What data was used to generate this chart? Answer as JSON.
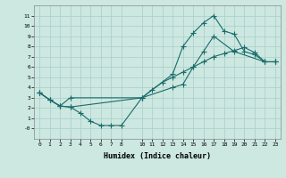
{
  "xlabel": "Humidex (Indice chaleur)",
  "bg_color": "#cce8e0",
  "grid_color": "#a8cec8",
  "line_color": "#1a6b6b",
  "xlim": [
    -0.5,
    23.5
  ],
  "ylim": [
    -1.0,
    12.0
  ],
  "xtick_positions": [
    0,
    1,
    2,
    3,
    4,
    5,
    6,
    7,
    8,
    10,
    11,
    12,
    13,
    14,
    15,
    16,
    17,
    18,
    19,
    20,
    21,
    22,
    23
  ],
  "xtick_labels": [
    "0",
    "1",
    "2",
    "3",
    "4",
    "5",
    "6",
    "7",
    "8",
    "10",
    "11",
    "12",
    "13",
    "14",
    "15",
    "16",
    "17",
    "18",
    "19",
    "20",
    "21",
    "22",
    "23"
  ],
  "ytick_positions": [
    0,
    1,
    2,
    3,
    4,
    5,
    6,
    7,
    8,
    9,
    10,
    11
  ],
  "ytick_labels": [
    "-0",
    "1",
    "2",
    "3",
    "4",
    "5",
    "6",
    "7",
    "8",
    "9",
    "10",
    "11"
  ],
  "line1_x": [
    0,
    1,
    2,
    3,
    4,
    5,
    6,
    7,
    8,
    10,
    11,
    12,
    13,
    14,
    15,
    16,
    17,
    18,
    19,
    20,
    21,
    22,
    23
  ],
  "line1_y": [
    3.5,
    2.8,
    2.2,
    2.1,
    1.5,
    0.7,
    0.3,
    0.3,
    0.3,
    3.0,
    3.8,
    4.5,
    5.0,
    5.5,
    6.0,
    6.5,
    7.0,
    7.3,
    7.6,
    7.9,
    7.4,
    6.5,
    6.5
  ],
  "line2_x": [
    0,
    1,
    2,
    3,
    10,
    13,
    14,
    15,
    16,
    17,
    18,
    19,
    20,
    21,
    22,
    23
  ],
  "line2_y": [
    3.5,
    2.8,
    2.2,
    2.1,
    3.0,
    5.3,
    8.0,
    9.3,
    10.3,
    11.0,
    9.5,
    9.2,
    7.5,
    7.2,
    6.5,
    6.5
  ],
  "line3_x": [
    0,
    1,
    2,
    3,
    10,
    13,
    14,
    15,
    16,
    17,
    19,
    22,
    23
  ],
  "line3_y": [
    3.5,
    2.8,
    2.2,
    3.0,
    3.0,
    4.0,
    4.3,
    6.0,
    7.5,
    9.0,
    7.5,
    6.5,
    6.5
  ]
}
